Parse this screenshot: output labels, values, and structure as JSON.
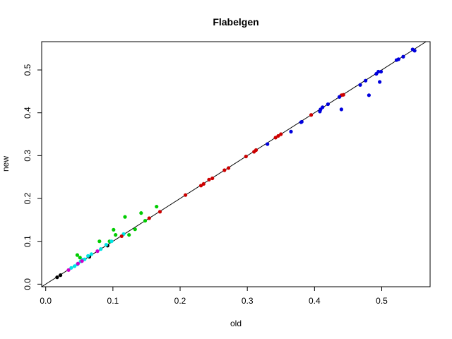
{
  "chart_data": {
    "type": "scatter",
    "title": "Flabelgen",
    "xlabel": "old",
    "ylabel": "new",
    "xlim": [
      -0.006,
      0.572
    ],
    "ylim": [
      -0.006,
      0.566
    ],
    "x_ticks": [
      0.0,
      0.1,
      0.2,
      0.3,
      0.4,
      0.5
    ],
    "x_tick_labels": [
      "0.0",
      "0.1",
      "0.2",
      "0.3",
      "0.4",
      "0.5"
    ],
    "y_ticks": [
      0.0,
      0.1,
      0.2,
      0.3,
      0.4,
      0.5
    ],
    "y_tick_labels": [
      "0.0",
      "0.1",
      "0.2",
      "0.3",
      "0.4",
      "0.5"
    ],
    "grid": false,
    "reference_line": {
      "type": "y=x",
      "color": "#000000"
    },
    "series": [
      {
        "color": "#000000",
        "points": [
          [
            0.017,
            0.016
          ],
          [
            0.022,
            0.021
          ],
          [
            0.065,
            0.064
          ],
          [
            0.092,
            0.09
          ]
        ]
      },
      {
        "color": "#00cc00",
        "points": [
          [
            0.047,
            0.068
          ],
          [
            0.051,
            0.062
          ],
          [
            0.08,
            0.1
          ],
          [
            0.095,
            0.1
          ],
          [
            0.101,
            0.127
          ],
          [
            0.104,
            0.115
          ],
          [
            0.118,
            0.157
          ],
          [
            0.124,
            0.115
          ],
          [
            0.133,
            0.128
          ],
          [
            0.142,
            0.166
          ],
          [
            0.148,
            0.148
          ],
          [
            0.165,
            0.181
          ]
        ]
      },
      {
        "color": "#00e5e5",
        "points": [
          [
            0.038,
            0.038
          ],
          [
            0.043,
            0.042
          ],
          [
            0.047,
            0.046
          ],
          [
            0.052,
            0.053
          ],
          [
            0.055,
            0.057
          ],
          [
            0.058,
            0.058
          ],
          [
            0.063,
            0.066
          ],
          [
            0.068,
            0.07
          ],
          [
            0.082,
            0.082
          ],
          [
            0.09,
            0.092
          ],
          [
            0.098,
            0.1
          ],
          [
            0.116,
            0.117
          ]
        ]
      },
      {
        "color": "#cc00cc",
        "points": [
          [
            0.034,
            0.033
          ],
          [
            0.048,
            0.048
          ],
          [
            0.054,
            0.054
          ],
          [
            0.077,
            0.077
          ]
        ]
      },
      {
        "color": "#cc0000",
        "points": [
          [
            0.113,
            0.112
          ],
          [
            0.154,
            0.154
          ],
          [
            0.17,
            0.169
          ],
          [
            0.208,
            0.208
          ],
          [
            0.231,
            0.23
          ],
          [
            0.235,
            0.234
          ],
          [
            0.243,
            0.244
          ],
          [
            0.248,
            0.247
          ],
          [
            0.266,
            0.266
          ],
          [
            0.272,
            0.271
          ],
          [
            0.298,
            0.298
          ],
          [
            0.31,
            0.309
          ],
          [
            0.313,
            0.313
          ],
          [
            0.342,
            0.342
          ],
          [
            0.346,
            0.346
          ],
          [
            0.35,
            0.35
          ],
          [
            0.395,
            0.395
          ],
          [
            0.44,
            0.441
          ],
          [
            0.443,
            0.442
          ]
        ]
      },
      {
        "color": "#0000dd",
        "points": [
          [
            0.33,
            0.327
          ],
          [
            0.365,
            0.356
          ],
          [
            0.38,
            0.378
          ],
          [
            0.381,
            0.379
          ],
          [
            0.408,
            0.403
          ],
          [
            0.409,
            0.408
          ],
          [
            0.412,
            0.413
          ],
          [
            0.42,
            0.42
          ],
          [
            0.437,
            0.437
          ],
          [
            0.44,
            0.408
          ],
          [
            0.468,
            0.465
          ],
          [
            0.476,
            0.475
          ],
          [
            0.481,
            0.441
          ],
          [
            0.492,
            0.491
          ],
          [
            0.495,
            0.496
          ],
          [
            0.497,
            0.472
          ],
          [
            0.499,
            0.496
          ],
          [
            0.522,
            0.523
          ],
          [
            0.525,
            0.525
          ],
          [
            0.532,
            0.531
          ],
          [
            0.546,
            0.548
          ],
          [
            0.549,
            0.545
          ]
        ]
      }
    ]
  }
}
